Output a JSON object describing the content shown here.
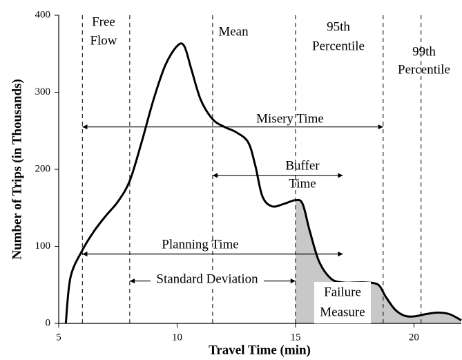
{
  "chart_data": {
    "type": "line",
    "x_label": "Travel Time (min)",
    "y_label": "Number of Trips (in Thousands)",
    "xlim": [
      5,
      22
    ],
    "ylim": [
      0,
      400
    ],
    "xticks": [
      5,
      10,
      15,
      20
    ],
    "yticks": [
      0,
      100,
      200,
      300,
      400
    ],
    "color": "#000000",
    "shade_color": "#c8c8c8",
    "shade_from": 15,
    "x": [
      5.3,
      5.5,
      6,
      6.5,
      7,
      7.5,
      8,
      8.5,
      9,
      9.5,
      10,
      10.3,
      10.6,
      11,
      11.5,
      12,
      12.5,
      13,
      13.3,
      13.6,
      14,
      14.5,
      15,
      15.3,
      15.6,
      16,
      16.5,
      17,
      17.5,
      18,
      18.5,
      18.8,
      19.2,
      19.6,
      20,
      20.5,
      21,
      21.5,
      22
    ],
    "values": [
      0,
      60,
      95,
      120,
      140,
      158,
      185,
      235,
      290,
      335,
      360,
      360,
      330,
      290,
      265,
      255,
      248,
      235,
      205,
      165,
      152,
      155,
      160,
      155,
      120,
      80,
      58,
      53,
      53,
      53,
      50,
      35,
      18,
      10,
      9,
      12,
      14,
      12,
      4
    ],
    "reference_lines": [
      6,
      8,
      11.5,
      15,
      18.7,
      20.3
    ],
    "reference_labels": [
      [
        "Free",
        "Flow"
      ],
      [
        "Mean"
      ],
      [
        "95th",
        "Percentile"
      ],
      [
        "99th",
        "Percentile"
      ]
    ],
    "arrows": [
      {
        "label": [
          "Misery Time"
        ],
        "x": [
          6,
          18.7
        ],
        "y": 255
      },
      {
        "label": [
          "Buffer",
          "Time"
        ],
        "x": [
          11.5,
          17
        ],
        "y": 192
      },
      {
        "label": [
          "Planning Time"
        ],
        "x": [
          6,
          17
        ],
        "y": 90
      },
      {
        "label": [
          "Standard Deviation"
        ],
        "x": [
          8,
          15
        ],
        "y": 55
      }
    ],
    "shade_label": [
      "Failure",
      "Measure"
    ]
  }
}
